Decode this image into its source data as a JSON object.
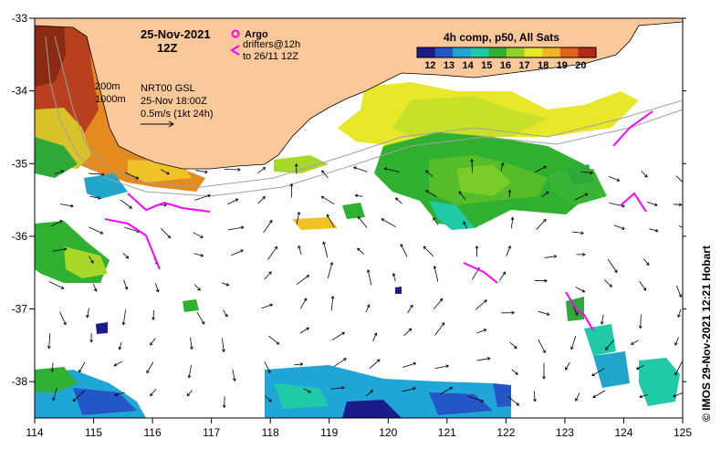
{
  "header": {
    "date": "25-Nov-2021",
    "hour": "12Z",
    "legend_argo": "Argo",
    "legend_drifters_1": "drifters@12h",
    "legend_drifters_2": "to 26/11 12Z",
    "product": "4h comp, p50, All Sats"
  },
  "notes": {
    "isobath_200": "200m",
    "isobath_1000": "1000m",
    "gsl_1": "NRT00 GSL",
    "gsl_2": "25-Nov 18:00Z",
    "gsl_3": "0.5m/s (1kt 24h)"
  },
  "colorbar": {
    "ticks": [
      "12",
      "13",
      "14",
      "15",
      "16",
      "17",
      "18",
      "19",
      "20"
    ],
    "colors": [
      "#1a1a8c",
      "#2456c8",
      "#1fa6d6",
      "#20c9a8",
      "#30b030",
      "#8fd22a",
      "#e8e82a",
      "#f0b428",
      "#e0641e",
      "#b4281e"
    ]
  },
  "axes": {
    "x_ticks": [
      "114",
      "115",
      "116",
      "117",
      "118",
      "119",
      "120",
      "121",
      "122",
      "123",
      "124",
      "125"
    ],
    "y_ticks": [
      "-33",
      "-34",
      "-35",
      "-36",
      "-37",
      "-38"
    ],
    "lon_range": [
      114,
      125
    ],
    "lat_range": [
      -38.5,
      -33
    ]
  },
  "credit": "© IMOS 29-Nov-2021 12:21 Hobart",
  "colors": {
    "land": "#fbc89a",
    "arrow": "#000000",
    "drifter": "#ff00ff",
    "isobath": "#a0a0a0"
  }
}
